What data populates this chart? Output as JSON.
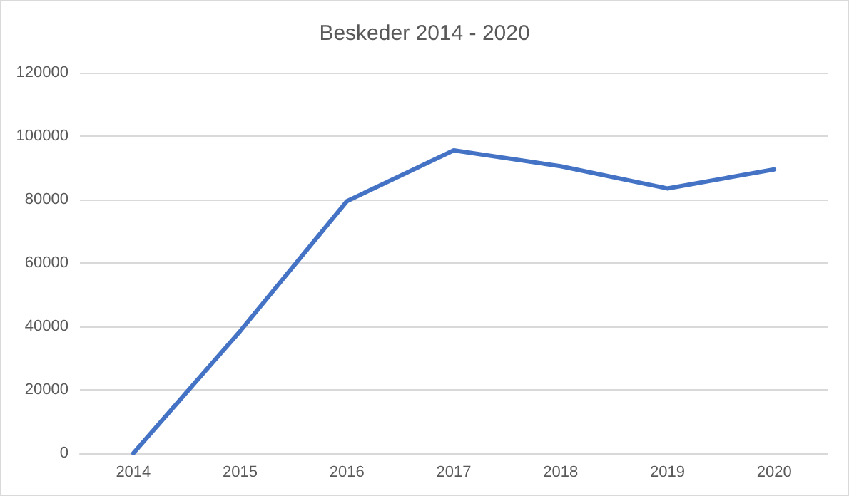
{
  "chart_data": {
    "type": "line",
    "title": "Beskeder 2014 - 2020",
    "categories": [
      "2014",
      "2015",
      "2016",
      "2017",
      "2018",
      "2019",
      "2020"
    ],
    "series": [
      {
        "color": "#4472c4",
        "values": [
          0,
          38500,
          79500,
          95500,
          90500,
          83500,
          89500
        ]
      }
    ],
    "ylim": [
      0,
      120000
    ],
    "yticks": [
      0,
      20000,
      40000,
      60000,
      80000,
      100000,
      120000
    ],
    "grid": "y",
    "marker": "none",
    "line_style": "solid"
  }
}
